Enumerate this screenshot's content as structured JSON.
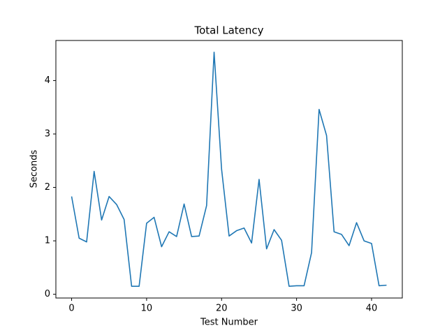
{
  "chart_data": {
    "type": "line",
    "title": "Total Latency",
    "x_label": "Test Number",
    "y_label": "Seconds",
    "x": [
      0,
      1,
      2,
      3,
      4,
      5,
      6,
      7,
      8,
      9,
      10,
      11,
      12,
      13,
      14,
      15,
      16,
      17,
      18,
      19,
      20,
      21,
      22,
      23,
      24,
      25,
      26,
      27,
      28,
      29,
      30,
      31,
      32,
      33,
      34,
      35,
      36,
      37,
      38,
      39,
      40,
      41,
      42
    ],
    "series": [
      {
        "color": "#1f77b4",
        "values": [
          1.83,
          1.05,
          0.98,
          2.3,
          1.39,
          1.83,
          1.68,
          1.4,
          0.15,
          0.15,
          1.33,
          1.44,
          0.89,
          1.17,
          1.08,
          1.69,
          1.08,
          1.09,
          1.66,
          4.53,
          2.34,
          1.09,
          1.19,
          1.24,
          0.96,
          2.15,
          0.85,
          1.21,
          1.01,
          0.15,
          0.16,
          0.16,
          0.78,
          3.46,
          2.97,
          1.17,
          1.12,
          0.91,
          1.34,
          1.0,
          0.95,
          0.16,
          0.17
        ]
      }
    ],
    "xlim": [
      -2.1,
      44.1
    ],
    "ylim": [
      -0.07,
      4.75
    ],
    "xticks": [
      0,
      10,
      20,
      30,
      40
    ],
    "yticks": [
      0,
      1,
      2,
      3,
      4
    ]
  }
}
